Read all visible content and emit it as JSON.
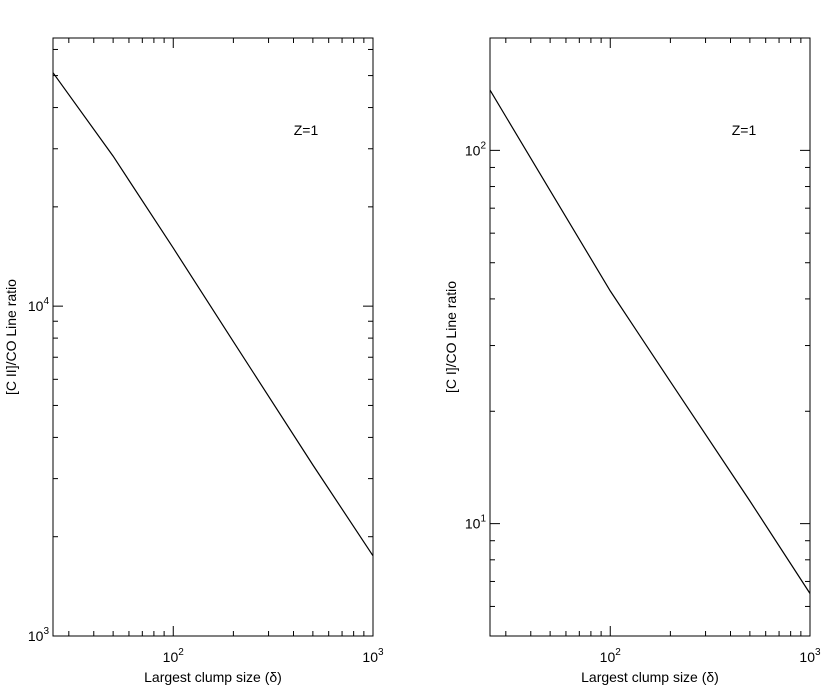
{
  "chart_data": [
    {
      "type": "line",
      "xscale": "log",
      "yscale": "log",
      "xlim": [
        25,
        1000
      ],
      "ylim": [
        1000,
        65000
      ],
      "xlabel": "Largest clump size (δ)",
      "ylabel": "[C II]/CO Line ratio",
      "annotation": "Z=1",
      "x_ticks": [
        {
          "mantissa": "10",
          "exp": "2",
          "value": 100
        },
        {
          "mantissa": "10",
          "exp": "3",
          "value": 1000
        }
      ],
      "y_ticks": [
        {
          "mantissa": "10",
          "exp": "3",
          "value": 1000
        },
        {
          "mantissa": "10",
          "exp": "4",
          "value": 10000
        }
      ],
      "series": [
        {
          "x": [
            25,
            50,
            100,
            200,
            500,
            1000
          ],
          "y": [
            51000,
            28500,
            15000,
            7800,
            3300,
            1750
          ]
        }
      ]
    },
    {
      "type": "line",
      "xscale": "log",
      "yscale": "log",
      "xlim": [
        25,
        1000
      ],
      "ylim": [
        5,
        200
      ],
      "xlabel": "Largest clump size (δ)",
      "ylabel": "[C I]/CO Line ratio",
      "annotation": "Z=1",
      "x_ticks": [
        {
          "mantissa": "10",
          "exp": "2",
          "value": 100
        },
        {
          "mantissa": "10",
          "exp": "3",
          "value": 1000
        }
      ],
      "y_ticks": [
        {
          "mantissa": "10",
          "exp": "1",
          "value": 10
        },
        {
          "mantissa": "10",
          "exp": "2",
          "value": 100
        }
      ],
      "series": [
        {
          "x": [
            25,
            50,
            100,
            200,
            500,
            1000
          ],
          "y": [
            145,
            78,
            42,
            24,
            11.5,
            6.5
          ]
        }
      ]
    }
  ]
}
